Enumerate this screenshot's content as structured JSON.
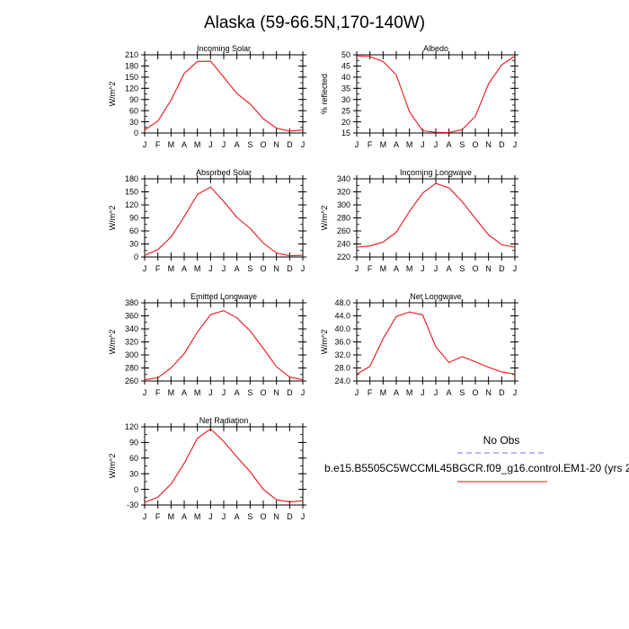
{
  "title": "Alaska (59-66.5N,170-140W)",
  "months": [
    "J",
    "F",
    "M",
    "A",
    "M",
    "J",
    "J",
    "A",
    "S",
    "O",
    "N",
    "D",
    "J"
  ],
  "chart_data": [
    {
      "id": "incoming-solar",
      "type": "line",
      "title": "Incoming Solar",
      "ylabel": "W/m^2",
      "ylim": [
        0,
        210
      ],
      "yticks": [
        0,
        30,
        60,
        90,
        120,
        150,
        180,
        210
      ],
      "ytick_labels": [
        "0",
        "30",
        "60",
        "90",
        "120",
        "150",
        "180",
        "210"
      ],
      "yminor": 15,
      "series": [
        {
          "color": "#e8141a",
          "values": [
            8,
            32,
            88,
            160,
            192,
            193,
            150,
            106,
            78,
            38,
            13,
            5,
            8
          ]
        }
      ]
    },
    {
      "id": "albedo",
      "type": "line",
      "title": "Albedo",
      "ylabel": "% reflected",
      "ylim": [
        15,
        50
      ],
      "yticks": [
        15,
        20,
        25,
        30,
        35,
        40,
        45,
        50
      ],
      "ytick_labels": [
        "15",
        "20",
        "25",
        "30",
        "35",
        "40",
        "45",
        "50"
      ],
      "yminor": 2.5,
      "series": [
        {
          "color": "#e8141a",
          "values": [
            49.5,
            49.2,
            47,
            41,
            24.5,
            16,
            15.3,
            15.2,
            16.5,
            22.5,
            37,
            45.5,
            49.5
          ]
        }
      ]
    },
    {
      "id": "absorbed-solar",
      "type": "line",
      "title": "Absorbed Solar",
      "ylabel": "W/m^2",
      "ylim": [
        0,
        180
      ],
      "yticks": [
        0,
        30,
        60,
        90,
        120,
        150,
        180
      ],
      "ytick_labels": [
        "0",
        "30",
        "60",
        "90",
        "120",
        "150",
        "180"
      ],
      "yminor": 15,
      "series": [
        {
          "color": "#e8141a",
          "values": [
            4,
            17,
            46,
            93,
            144,
            161,
            128,
            91,
            66,
            32,
            9,
            3,
            4
          ]
        }
      ]
    },
    {
      "id": "incoming-longwave",
      "type": "line",
      "title": "Incoming Longwave",
      "ylabel": "W/m^2",
      "ylim": [
        220,
        340
      ],
      "yticks": [
        220,
        240,
        260,
        280,
        300,
        320,
        340
      ],
      "ytick_labels": [
        "220",
        "240",
        "260",
        "280",
        "300",
        "320",
        "340"
      ],
      "yminor": 10,
      "series": [
        {
          "color": "#e8141a",
          "values": [
            235,
            237,
            243,
            258,
            290,
            318,
            333,
            326,
            305,
            279,
            254,
            239,
            235
          ]
        }
      ]
    },
    {
      "id": "emitted-longwave",
      "type": "line",
      "title": "Emitted Longwave",
      "ylabel": "W/m^2",
      "ylim": [
        260,
        380
      ],
      "yticks": [
        260,
        280,
        300,
        320,
        340,
        360,
        380
      ],
      "ytick_labels": [
        "260",
        "280",
        "300",
        "320",
        "340",
        "360",
        "380"
      ],
      "yminor": 10,
      "series": [
        {
          "color": "#e8141a",
          "values": [
            262,
            265,
            280,
            302,
            335,
            362,
            368,
            357,
            337,
            310,
            282,
            266,
            262
          ]
        }
      ]
    },
    {
      "id": "net-longwave",
      "type": "line",
      "title": "Net Longwave",
      "ylabel": "W/m^2",
      "ylim": [
        24,
        48
      ],
      "yticks": [
        24,
        28,
        32,
        36,
        40,
        44,
        48
      ],
      "ytick_labels": [
        "24.0",
        "28.0",
        "32.0",
        "36.0",
        "40.0",
        "44.0",
        "48.0"
      ],
      "yminor": 2,
      "series": [
        {
          "color": "#e8141a",
          "values": [
            26.1,
            28.5,
            37,
            43.8,
            45.2,
            44.3,
            34.5,
            29.7,
            31.5,
            29.9,
            28.2,
            26.8,
            26.1
          ]
        }
      ]
    },
    {
      "id": "net-radiation",
      "type": "line",
      "title": "Net Radiation",
      "ylabel": "W/m^2",
      "ylim": [
        -30,
        120
      ],
      "yticks": [
        -30,
        0,
        30,
        60,
        90,
        120
      ],
      "ytick_labels": [
        "-30",
        "0",
        "30",
        "60",
        "90",
        "120"
      ],
      "yminor": 15,
      "series": [
        {
          "color": "#e8141a",
          "values": [
            -25,
            -15,
            10,
            50,
            98,
            116,
            92,
            62,
            34,
            0,
            -20,
            -24,
            -22
          ]
        }
      ]
    }
  ],
  "legend": {
    "obs_label": "No Obs",
    "obs_color": "#7070ff",
    "model_label": "b.e15.B5505C5WCCML45BGCR.f09_g16.control.EM1-20 (yrs 2",
    "model_color": "#e8141a"
  }
}
